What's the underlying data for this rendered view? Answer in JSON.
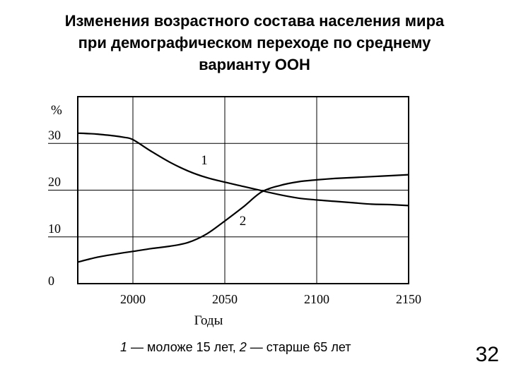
{
  "slide": {
    "title": "Изменения возрастного состава населения мира\nпри демографическом переходе по среднему\nварианту ООН",
    "page_number": "32"
  },
  "chart_data": {
    "type": "line",
    "title": "Изменения возрастного состава населения мира при демографическом переходе по среднему варианту ООН",
    "xlabel": "Годы",
    "ylabel": "%",
    "xlim": [
      1970,
      2155
    ],
    "ylim": [
      0,
      40
    ],
    "x_ticks": [
      2000,
      2050,
      2100,
      2150
    ],
    "y_ticks": [
      0,
      10,
      20,
      30
    ],
    "grid": true,
    "legend_text": {
      "s1_num": "1",
      "s1_text": " — моложе 15 лет, ",
      "s2_num": "2",
      "s2_text": " — старше 65 лет"
    },
    "series": [
      {
        "name": "1",
        "label": "1",
        "description": "моложе 15 лет",
        "x": [
          1970,
          1980,
          1990,
          1995,
          2000,
          2010,
          2020,
          2030,
          2040,
          2050,
          2060,
          2070,
          2080,
          2090,
          2100,
          2110,
          2120,
          2130,
          2140,
          2150
        ],
        "values": [
          32.2,
          32.0,
          31.6,
          31.3,
          30.8,
          28.3,
          26.0,
          24.1,
          22.7,
          21.7,
          20.8,
          19.9,
          19.0,
          18.3,
          17.9,
          17.6,
          17.3,
          17.0,
          16.9,
          16.7
        ]
      },
      {
        "name": "2",
        "label": "2",
        "description": "старше 65 лет",
        "x": [
          1970,
          1980,
          1990,
          2000,
          2010,
          2020,
          2030,
          2040,
          2050,
          2060,
          2070,
          2080,
          2090,
          2100,
          2110,
          2120,
          2130,
          2140,
          2150
        ],
        "values": [
          4.6,
          5.6,
          6.3,
          6.9,
          7.5,
          8.0,
          8.8,
          10.6,
          13.4,
          16.4,
          19.6,
          21.0,
          21.8,
          22.2,
          22.5,
          22.7,
          22.9,
          23.1,
          23.3
        ]
      }
    ]
  }
}
